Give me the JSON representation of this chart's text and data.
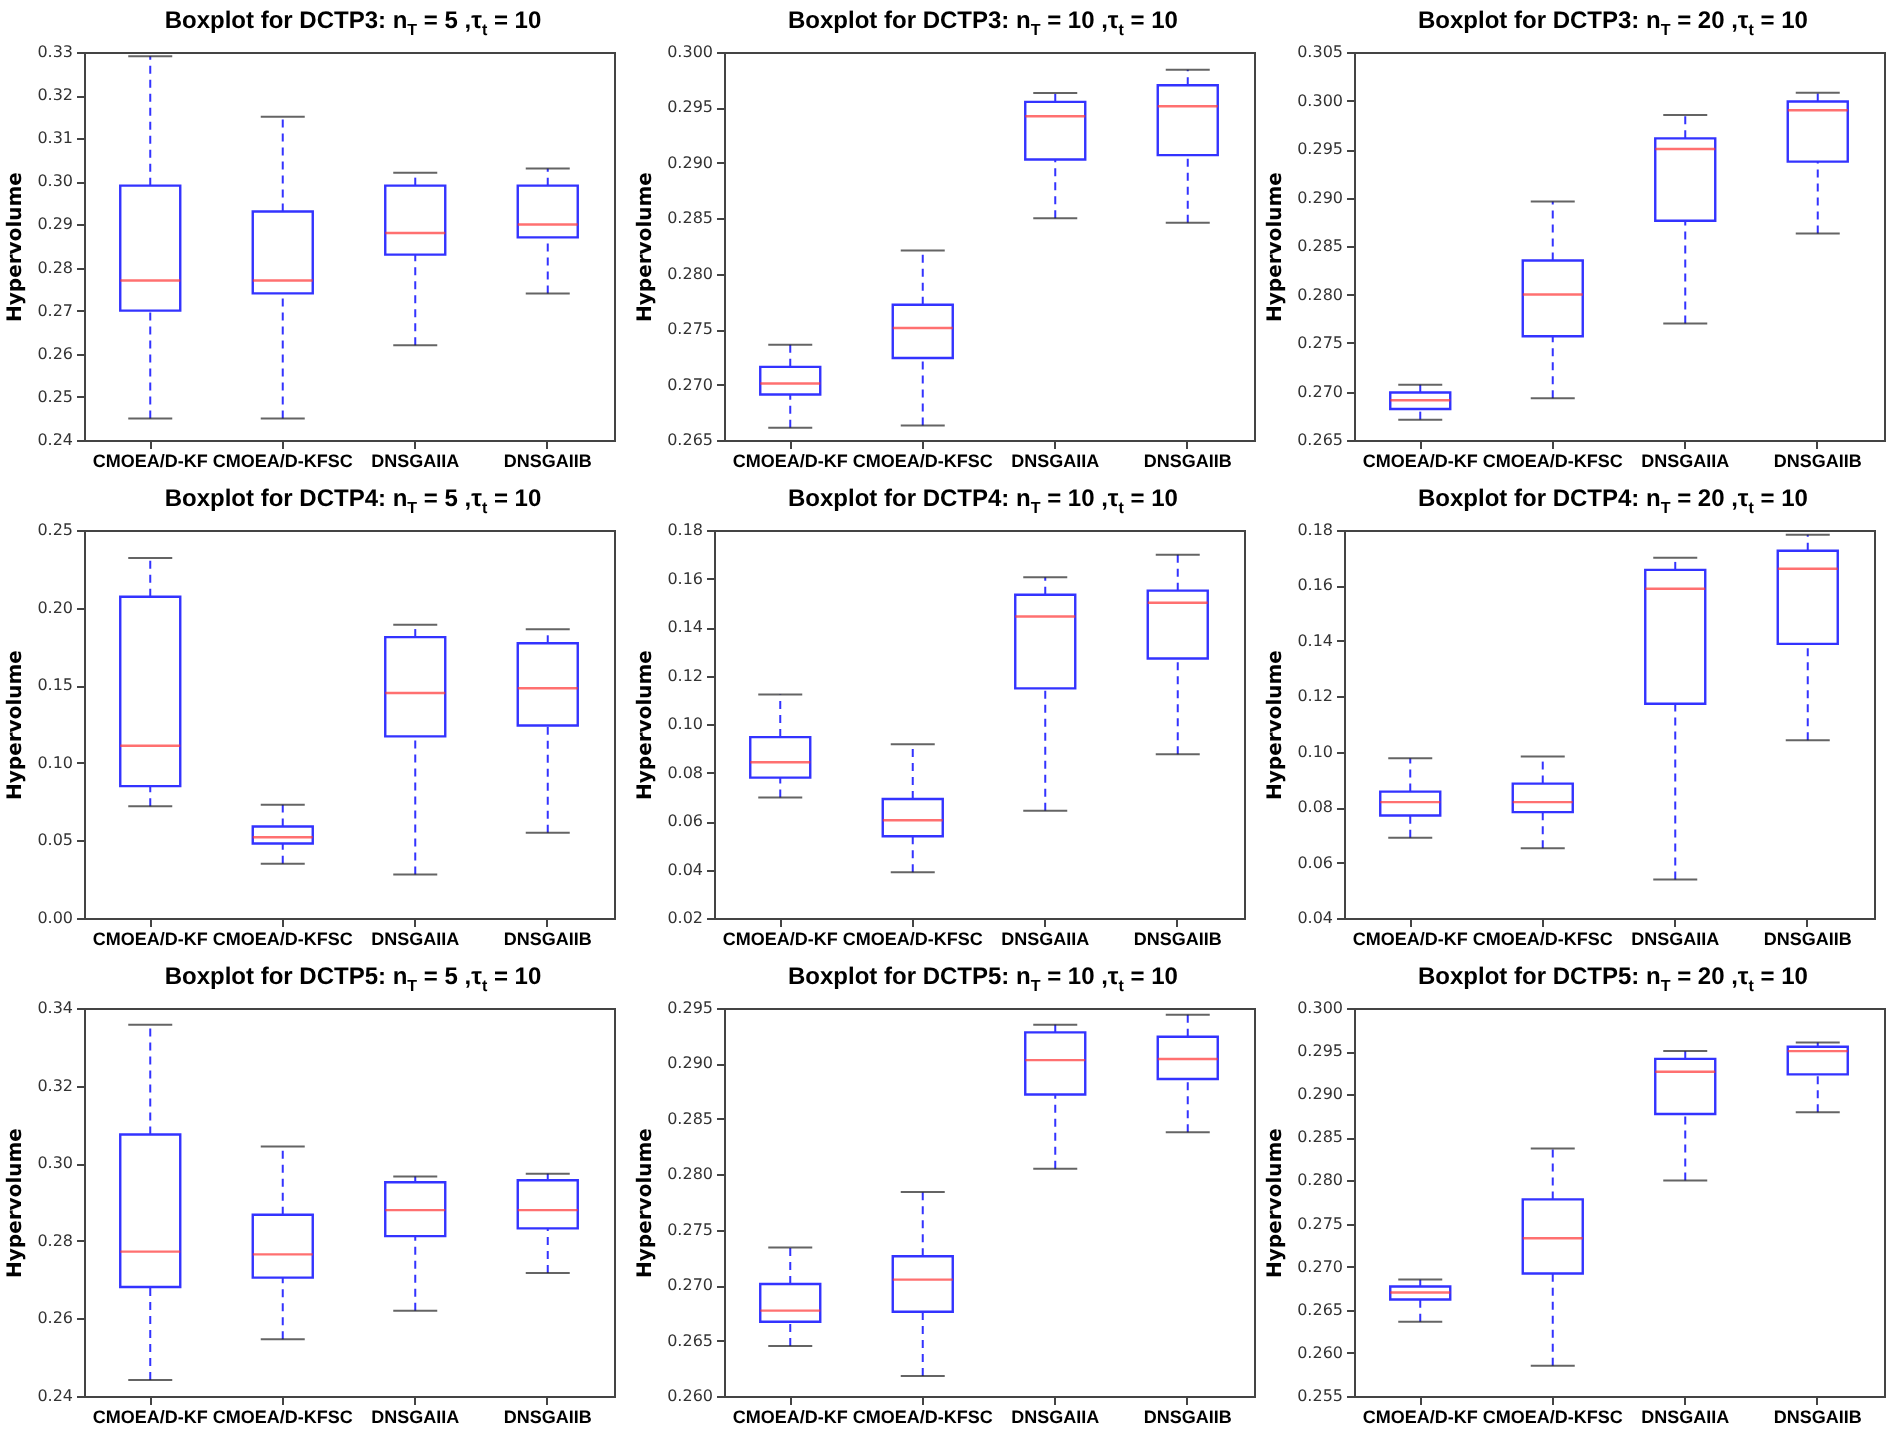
{
  "chart_data": [
    {
      "type": "box",
      "title": "Boxplot for DCTP3: n$_{T}$ = 5 ,τ$_{t}$ = 10",
      "ylabel": "Hypervolume",
      "categories": [
        "CMOEA/D-KF",
        "CMOEA/D-KFSC",
        "DNSGAIIA",
        "DNSGAIIB"
      ],
      "ylim": [
        0.24,
        0.33
      ],
      "yticks": [
        0.24,
        0.25,
        0.26,
        0.27,
        0.28,
        0.29,
        {
          "value": 0.3,
          "label": "0.30"
        },
        0.31,
        0.32,
        0.33
      ],
      "boxes": [
        {
          "low": 0.245,
          "q1": 0.27,
          "median": 0.277,
          "q3": 0.299,
          "high": 0.329
        },
        {
          "low": 0.245,
          "q1": 0.274,
          "median": 0.277,
          "q3": 0.293,
          "high": 0.315
        },
        {
          "low": 0.262,
          "q1": 0.283,
          "median": 0.288,
          "q3": 0.299,
          "high": 0.302
        },
        {
          "low": 0.274,
          "q1": 0.287,
          "median": 0.29,
          "q3": 0.299,
          "high": 0.303
        }
      ]
    },
    {
      "type": "box",
      "title": "Boxplot for DCTP3: n$_{T}$ = 10 ,τ$_{t}$ = 10",
      "ylabel": "Hypervolume",
      "categories": [
        "CMOEA/D-KF",
        "CMOEA/D-KFSC",
        "DNSGAIIA",
        "DNSGAIIB"
      ],
      "ylim": [
        0.265,
        0.3
      ],
      "yticks": [
        0.265,
        {
          "value": 0.27,
          "label": "0.270"
        },
        0.275,
        {
          "value": 0.28,
          "label": "0.280"
        },
        0.285,
        {
          "value": 0.29,
          "label": "0.290"
        },
        0.295,
        {
          "value": 0.3,
          "label": "0.300"
        }
      ],
      "boxes": [
        {
          "low": 0.2661,
          "q1": 0.2691,
          "median": 0.2701,
          "q3": 0.2716,
          "high": 0.2736
        },
        {
          "low": 0.2663,
          "q1": 0.2724,
          "median": 0.2751,
          "q3": 0.2772,
          "high": 0.2821
        },
        {
          "low": 0.285,
          "q1": 0.2903,
          "median": 0.2942,
          "q3": 0.2955,
          "high": 0.2963
        },
        {
          "low": 0.2846,
          "q1": 0.2907,
          "median": 0.2951,
          "q3": 0.297,
          "high": 0.2984
        }
      ]
    },
    {
      "type": "box",
      "title": "Boxplot for DCTP3: n$_{T}$ = 20 ,τ$_{t}$ = 10",
      "ylabel": "Hypervolume",
      "categories": [
        "CMOEA/D-KF",
        "CMOEA/D-KFSC",
        "DNSGAIIA",
        "DNSGAIIB"
      ],
      "ylim": [
        0.265,
        0.305
      ],
      "yticks": [
        0.265,
        {
          "value": 0.27,
          "label": "0.270"
        },
        0.275,
        {
          "value": 0.28,
          "label": "0.280"
        },
        0.285,
        {
          "value": 0.29,
          "label": "0.290"
        },
        0.295,
        {
          "value": 0.3,
          "label": "0.300"
        },
        0.305
      ],
      "boxes": [
        {
          "low": 0.2671,
          "q1": 0.2682,
          "median": 0.2691,
          "q3": 0.2699,
          "high": 0.2707
        },
        {
          "low": 0.2693,
          "q1": 0.2757,
          "median": 0.28,
          "q3": 0.2835,
          "high": 0.2896
        },
        {
          "low": 0.277,
          "q1": 0.2876,
          "median": 0.295,
          "q3": 0.2961,
          "high": 0.2985
        },
        {
          "low": 0.2863,
          "q1": 0.2937,
          "median": 0.299,
          "q3": 0.2999,
          "high": 0.3008
        }
      ]
    },
    {
      "type": "box",
      "title": "Boxplot for DCTP4: n$_{T}$ = 5 ,τ$_{t}$ = 10",
      "ylabel": "Hypervolume",
      "categories": [
        "CMOEA/D-KF",
        "CMOEA/D-KFSC",
        "DNSGAIIA",
        "DNSGAIIB"
      ],
      "ylim": [
        0,
        0.25
      ],
      "yticks": [
        {
          "value": 0,
          "label": "0.00"
        },
        0.05,
        {
          "value": 0.1,
          "label": "0.10"
        },
        0.15,
        {
          "value": 0.2,
          "label": "0.20"
        },
        0.25
      ],
      "boxes": [
        {
          "low": 0.072,
          "q1": 0.085,
          "median": 0.111,
          "q3": 0.207,
          "high": 0.232
        },
        {
          "low": 0.035,
          "q1": 0.048,
          "median": 0.052,
          "q3": 0.059,
          "high": 0.073
        },
        {
          "low": 0.028,
          "q1": 0.117,
          "median": 0.145,
          "q3": 0.181,
          "high": 0.189
        },
        {
          "low": 0.055,
          "q1": 0.124,
          "median": 0.148,
          "q3": 0.177,
          "high": 0.186
        }
      ]
    },
    {
      "type": "box",
      "title": "Boxplot for DCTP4: n$_{T}$ = 10 ,τ$_{t}$ = 10",
      "ylabel": "Hypervolume",
      "categories": [
        "CMOEA/D-KF",
        "CMOEA/D-KFSC",
        "DNSGAIIA",
        "DNSGAIIB"
      ],
      "ylim": [
        0.02,
        0.18
      ],
      "yticks": [
        0.02,
        0.04,
        0.06,
        0.08,
        {
          "value": 0.1,
          "label": "0.10"
        },
        0.12,
        0.14,
        0.16,
        0.18
      ],
      "boxes": [
        {
          "low": 0.0697,
          "q1": 0.0779,
          "median": 0.0842,
          "q3": 0.0946,
          "high": 0.1122
        },
        {
          "low": 0.0389,
          "q1": 0.0537,
          "median": 0.0603,
          "q3": 0.0691,
          "high": 0.0916
        },
        {
          "low": 0.0642,
          "q1": 0.1147,
          "median": 0.1443,
          "q3": 0.1533,
          "high": 0.1605
        },
        {
          "low": 0.0875,
          "q1": 0.127,
          "median": 0.15,
          "q3": 0.155,
          "high": 0.1698
        }
      ]
    },
    {
      "type": "box",
      "title": "Boxplot for DCTP4: n$_{T}$ = 20 ,τ$_{t}$ = 10",
      "ylabel": "Hypervolume",
      "categories": [
        "CMOEA/D-KF",
        "CMOEA/D-KFSC",
        "DNSGAIIA",
        "DNSGAIIB"
      ],
      "ylim": [
        0.04,
        0.18
      ],
      "yticks": [
        0.04,
        0.06,
        0.08,
        {
          "value": 0.1,
          "label": "0.10"
        },
        0.12,
        0.14,
        0.16,
        0.18
      ],
      "boxes": [
        {
          "low": 0.069,
          "q1": 0.077,
          "median": 0.0818,
          "q3": 0.0856,
          "high": 0.0976
        },
        {
          "low": 0.0652,
          "q1": 0.0782,
          "median": 0.0818,
          "q3": 0.0885,
          "high": 0.0983
        },
        {
          "low": 0.0539,
          "q1": 0.1173,
          "median": 0.1588,
          "q3": 0.1656,
          "high": 0.17
        },
        {
          "low": 0.1041,
          "q1": 0.1389,
          "median": 0.166,
          "q3": 0.1725,
          "high": 0.1783
        }
      ]
    },
    {
      "type": "box",
      "title": "Boxplot for DCTP5: n$_{T}$ = 5 ,τ$_{t}$ = 10",
      "ylabel": "Hypervolume",
      "categories": [
        "CMOEA/D-KF",
        "CMOEA/D-KFSC",
        "DNSGAIIA",
        "DNSGAIIB"
      ],
      "ylim": [
        0.24,
        0.34
      ],
      "yticks": [
        0.24,
        0.26,
        0.28,
        {
          "value": 0.3,
          "label": "0.30"
        },
        0.32,
        0.34
      ],
      "boxes": [
        {
          "low": 0.2441,
          "q1": 0.2681,
          "median": 0.2772,
          "q3": 0.3074,
          "high": 0.3357
        },
        {
          "low": 0.2546,
          "q1": 0.2705,
          "median": 0.2765,
          "q3": 0.2867,
          "high": 0.3043
        },
        {
          "low": 0.262,
          "q1": 0.2812,
          "median": 0.2879,
          "q3": 0.2951,
          "high": 0.2966
        },
        {
          "low": 0.2717,
          "q1": 0.2832,
          "median": 0.2879,
          "q3": 0.2956,
          "high": 0.2973
        }
      ]
    },
    {
      "type": "box",
      "title": "Boxplot for DCTP5: n$_{T}$ = 10 ,τ$_{t}$ = 10",
      "ylabel": "Hypervolume",
      "categories": [
        "CMOEA/D-KF",
        "CMOEA/D-KFSC",
        "DNSGAIIA",
        "DNSGAIIB"
      ],
      "ylim": [
        0.26,
        0.295
      ],
      "yticks": [
        {
          "value": 0.26,
          "label": "0.260"
        },
        0.265,
        {
          "value": 0.27,
          "label": "0.270"
        },
        0.275,
        {
          "value": 0.28,
          "label": "0.280"
        },
        0.285,
        {
          "value": 0.29,
          "label": "0.290"
        },
        0.295
      ],
      "boxes": [
        {
          "low": 0.2645,
          "q1": 0.2667,
          "median": 0.2677,
          "q3": 0.2701,
          "high": 0.2734
        },
        {
          "low": 0.2618,
          "q1": 0.2676,
          "median": 0.2705,
          "q3": 0.2726,
          "high": 0.2784
        },
        {
          "low": 0.2805,
          "q1": 0.2872,
          "median": 0.2903,
          "q3": 0.2928,
          "high": 0.2935
        },
        {
          "low": 0.2838,
          "q1": 0.2886,
          "median": 0.2904,
          "q3": 0.2924,
          "high": 0.2944
        }
      ]
    },
    {
      "type": "box",
      "title": "Boxplot for DCTP5: n$_{T}$ = 20 ,τ$_{t}$ = 10",
      "ylabel": "Hypervolume",
      "categories": [
        "CMOEA/D-KF",
        "CMOEA/D-KFSC",
        "DNSGAIIA",
        "DNSGAIIB"
      ],
      "ylim": [
        0.255,
        0.3
      ],
      "yticks": [
        0.255,
        {
          "value": 0.26,
          "label": "0.260"
        },
        0.265,
        {
          "value": 0.27,
          "label": "0.270"
        },
        0.275,
        {
          "value": 0.28,
          "label": "0.280"
        },
        0.285,
        {
          "value": 0.29,
          "label": "0.290"
        },
        0.295,
        {
          "value": 0.3,
          "label": "0.300"
        }
      ],
      "boxes": [
        {
          "low": 0.2636,
          "q1": 0.2662,
          "median": 0.267,
          "q3": 0.2677,
          "high": 0.2685
        },
        {
          "low": 0.2585,
          "q1": 0.2692,
          "median": 0.2733,
          "q3": 0.2778,
          "high": 0.2837
        },
        {
          "low": 0.28,
          "q1": 0.2877,
          "median": 0.2926,
          "q3": 0.2941,
          "high": 0.295
        },
        {
          "low": 0.2879,
          "q1": 0.2923,
          "median": 0.295,
          "q3": 0.2955,
          "high": 0.296
        }
      ]
    }
  ]
}
